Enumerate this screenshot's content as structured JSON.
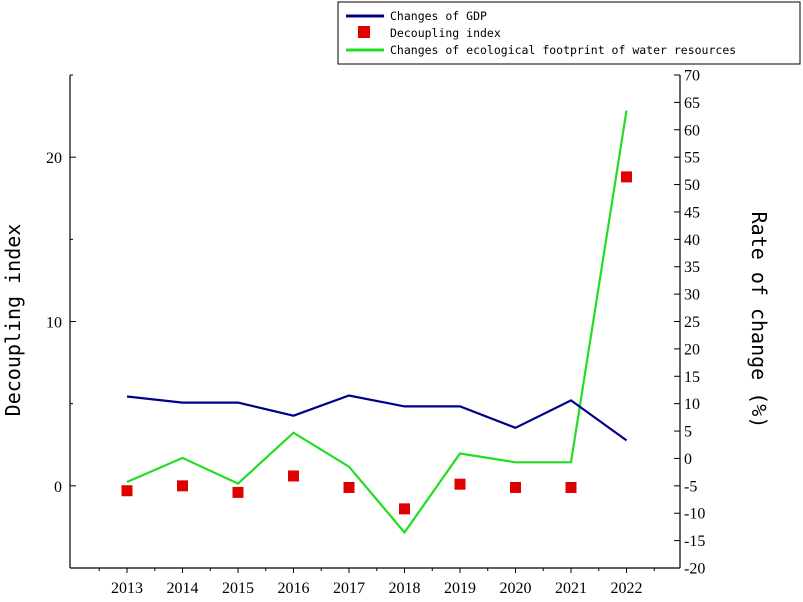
{
  "chart_data": {
    "type": "line",
    "categories": [
      "2013",
      "2014",
      "2015",
      "2016",
      "2017",
      "2018",
      "2019",
      "2020",
      "2021",
      "2022"
    ],
    "y_left": {
      "label": "Decoupling index",
      "ylim": [
        -5,
        25
      ],
      "ticks": [
        0,
        10,
        20
      ],
      "tick_labels": [
        "0",
        "10",
        "20"
      ]
    },
    "y_right": {
      "label": "Rate of change (%)",
      "ylim": [
        -20,
        70
      ],
      "ticks": [
        -20,
        -15,
        -10,
        -5,
        0,
        5,
        10,
        15,
        20,
        25,
        30,
        35,
        40,
        45,
        50,
        55,
        60,
        65,
        70
      ],
      "tick_labels": [
        "-20",
        "-15",
        "-10",
        "-5",
        "0",
        "5",
        "10",
        "15",
        "20",
        "25",
        "30",
        "35",
        "40",
        "45",
        "50",
        "55",
        "60",
        "65",
        "70"
      ]
    },
    "series": [
      {
        "name": "Changes of GDP",
        "axis": "right",
        "mark": "line",
        "color": "#00008B",
        "values": [
          11.3,
          10.2,
          10.2,
          7.8,
          11.5,
          9.5,
          9.5,
          5.6,
          10.6,
          3.3
        ]
      },
      {
        "name": "Decoupling index",
        "axis": "left",
        "mark": "square",
        "color": "#E00000",
        "values": [
          -0.3,
          0.0,
          -0.4,
          0.6,
          -0.1,
          -1.4,
          0.1,
          -0.1,
          -0.1,
          18.8
        ]
      },
      {
        "name": "Changes of ecological footprint of water resources",
        "axis": "right",
        "mark": "line",
        "color": "#22DD22",
        "values": [
          -4.3,
          0.1,
          -4.6,
          4.7,
          -1.5,
          -13.5,
          0.9,
          -0.7,
          -0.7,
          63.5
        ]
      }
    ],
    "legend_position": "top-right",
    "grid": false
  }
}
